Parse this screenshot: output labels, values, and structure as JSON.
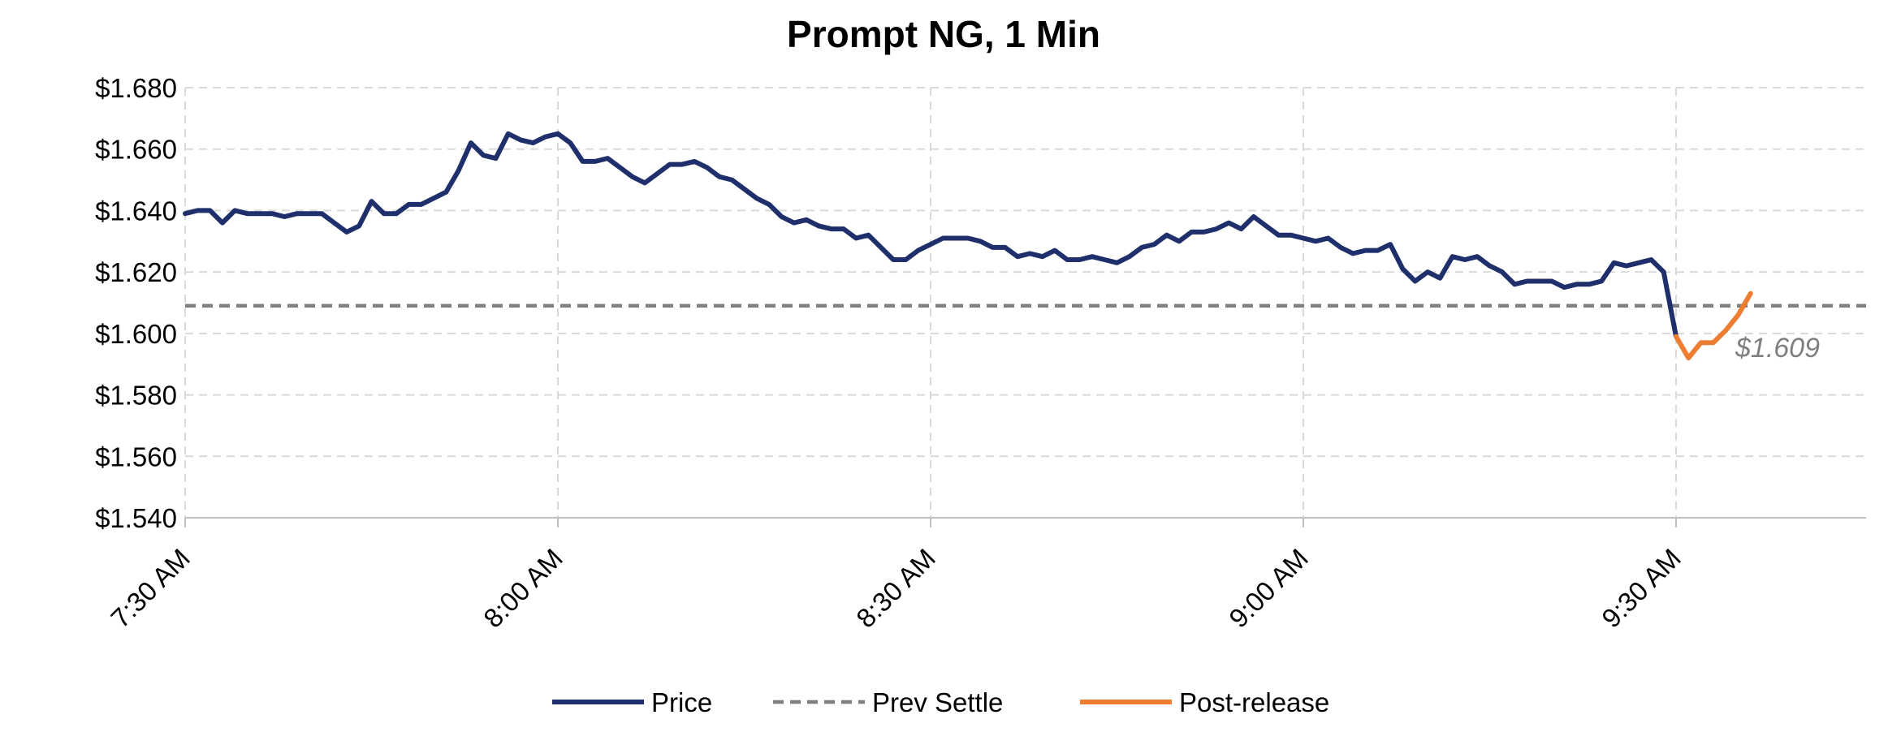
{
  "chart_data": {
    "type": "line",
    "title": "Prompt NG, 1 Min",
    "xlabel": "",
    "ylabel": "",
    "y_ticks": [
      "$1.540",
      "$1.560",
      "$1.580",
      "$1.600",
      "$1.620",
      "$1.640",
      "$1.660",
      "$1.680"
    ],
    "ylim": [
      1.54,
      1.68
    ],
    "x_ticks": [
      "7:30 AM",
      "8:00 AM",
      "8:30 AM",
      "9:00 AM",
      "9:30 AM"
    ],
    "x_range_minutes_after_0730": [
      0,
      136
    ],
    "grid": true,
    "legend_position": "bottom",
    "colors": {
      "price": "#1f2f6b",
      "prev_settle": "#7f7f7f",
      "post_release": "#ed7d31",
      "grid": "#d9d9d9"
    },
    "series": [
      {
        "name": "Price",
        "points": [
          [
            "7:30 AM",
            1.639
          ],
          [
            "7:31 AM",
            1.64
          ],
          [
            "7:32 AM",
            1.64
          ],
          [
            "7:33 AM",
            1.636
          ],
          [
            "7:34 AM",
            1.64
          ],
          [
            "7:35 AM",
            1.639
          ],
          [
            "7:36 AM",
            1.639
          ],
          [
            "7:37 AM",
            1.639
          ],
          [
            "7:38 AM",
            1.638
          ],
          [
            "7:39 AM",
            1.639
          ],
          [
            "7:40 AM",
            1.639
          ],
          [
            "7:41 AM",
            1.639
          ],
          [
            "7:42 AM",
            1.636
          ],
          [
            "7:43 AM",
            1.633
          ],
          [
            "7:44 AM",
            1.635
          ],
          [
            "7:45 AM",
            1.643
          ],
          [
            "7:46 AM",
            1.639
          ],
          [
            "7:47 AM",
            1.639
          ],
          [
            "7:48 AM",
            1.642
          ],
          [
            "7:49 AM",
            1.642
          ],
          [
            "7:50 AM",
            1.644
          ],
          [
            "7:51 AM",
            1.646
          ],
          [
            "7:52 AM",
            1.653
          ],
          [
            "7:53 AM",
            1.662
          ],
          [
            "7:54 AM",
            1.658
          ],
          [
            "7:55 AM",
            1.657
          ],
          [
            "7:56 AM",
            1.665
          ],
          [
            "7:57 AM",
            1.663
          ],
          [
            "7:58 AM",
            1.662
          ],
          [
            "7:59 AM",
            1.664
          ],
          [
            "8:00 AM",
            1.665
          ],
          [
            "8:01 AM",
            1.662
          ],
          [
            "8:02 AM",
            1.656
          ],
          [
            "8:03 AM",
            1.656
          ],
          [
            "8:04 AM",
            1.657
          ],
          [
            "8:05 AM",
            1.654
          ],
          [
            "8:06 AM",
            1.651
          ],
          [
            "8:07 AM",
            1.649
          ],
          [
            "8:08 AM",
            1.652
          ],
          [
            "8:09 AM",
            1.655
          ],
          [
            "8:10 AM",
            1.655
          ],
          [
            "8:11 AM",
            1.656
          ],
          [
            "8:12 AM",
            1.654
          ],
          [
            "8:13 AM",
            1.651
          ],
          [
            "8:14 AM",
            1.65
          ],
          [
            "8:15 AM",
            1.647
          ],
          [
            "8:16 AM",
            1.644
          ],
          [
            "8:17 AM",
            1.642
          ],
          [
            "8:18 AM",
            1.638
          ],
          [
            "8:19 AM",
            1.636
          ],
          [
            "8:20 AM",
            1.637
          ],
          [
            "8:21 AM",
            1.635
          ],
          [
            "8:22 AM",
            1.634
          ],
          [
            "8:23 AM",
            1.634
          ],
          [
            "8:24 AM",
            1.631
          ],
          [
            "8:25 AM",
            1.632
          ],
          [
            "8:26 AM",
            1.628
          ],
          [
            "8:27 AM",
            1.624
          ],
          [
            "8:28 AM",
            1.624
          ],
          [
            "8:29 AM",
            1.627
          ],
          [
            "8:30 AM",
            1.629
          ],
          [
            "8:31 AM",
            1.631
          ],
          [
            "8:32 AM",
            1.631
          ],
          [
            "8:33 AM",
            1.631
          ],
          [
            "8:34 AM",
            1.63
          ],
          [
            "8:35 AM",
            1.628
          ],
          [
            "8:36 AM",
            1.628
          ],
          [
            "8:37 AM",
            1.625
          ],
          [
            "8:38 AM",
            1.626
          ],
          [
            "8:39 AM",
            1.625
          ],
          [
            "8:40 AM",
            1.627
          ],
          [
            "8:41 AM",
            1.624
          ],
          [
            "8:42 AM",
            1.624
          ],
          [
            "8:43 AM",
            1.625
          ],
          [
            "8:44 AM",
            1.624
          ],
          [
            "8:45 AM",
            1.623
          ],
          [
            "8:46 AM",
            1.625
          ],
          [
            "8:47 AM",
            1.628
          ],
          [
            "8:48 AM",
            1.629
          ],
          [
            "8:49 AM",
            1.632
          ],
          [
            "8:50 AM",
            1.63
          ],
          [
            "8:51 AM",
            1.633
          ],
          [
            "8:52 AM",
            1.633
          ],
          [
            "8:53 AM",
            1.634
          ],
          [
            "8:54 AM",
            1.636
          ],
          [
            "8:55 AM",
            1.634
          ],
          [
            "8:56 AM",
            1.638
          ],
          [
            "8:57 AM",
            1.635
          ],
          [
            "8:58 AM",
            1.632
          ],
          [
            "8:59 AM",
            1.632
          ],
          [
            "9:00 AM",
            1.631
          ],
          [
            "9:01 AM",
            1.63
          ],
          [
            "9:02 AM",
            1.631
          ],
          [
            "9:03 AM",
            1.628
          ],
          [
            "9:04 AM",
            1.626
          ],
          [
            "9:05 AM",
            1.627
          ],
          [
            "9:06 AM",
            1.627
          ],
          [
            "9:07 AM",
            1.629
          ],
          [
            "9:08 AM",
            1.621
          ],
          [
            "9:09 AM",
            1.617
          ],
          [
            "9:10 AM",
            1.62
          ],
          [
            "9:11 AM",
            1.618
          ],
          [
            "9:12 AM",
            1.625
          ],
          [
            "9:13 AM",
            1.624
          ],
          [
            "9:14 AM",
            1.625
          ],
          [
            "9:15 AM",
            1.622
          ],
          [
            "9:16 AM",
            1.62
          ],
          [
            "9:17 AM",
            1.616
          ],
          [
            "9:18 AM",
            1.617
          ],
          [
            "9:19 AM",
            1.617
          ],
          [
            "9:20 AM",
            1.617
          ],
          [
            "9:21 AM",
            1.615
          ],
          [
            "9:22 AM",
            1.616
          ],
          [
            "9:23 AM",
            1.616
          ],
          [
            "9:24 AM",
            1.617
          ],
          [
            "9:25 AM",
            1.623
          ],
          [
            "9:26 AM",
            1.622
          ],
          [
            "9:27 AM",
            1.623
          ],
          [
            "9:28 AM",
            1.624
          ],
          [
            "9:29 AM",
            1.62
          ],
          [
            "9:30 AM",
            1.599
          ]
        ]
      },
      {
        "name": "Prev Settle",
        "value": 1.609,
        "style": "dashed"
      },
      {
        "name": "Post-release",
        "points": [
          [
            "9:30 AM",
            1.599
          ],
          [
            "9:31 AM",
            1.592
          ],
          [
            "9:32 AM",
            1.597
          ],
          [
            "9:33 AM",
            1.597
          ],
          [
            "9:34 AM",
            1.601
          ],
          [
            "9:35 AM",
            1.606
          ],
          [
            "9:36 AM",
            1.613
          ]
        ]
      }
    ],
    "annotations": [
      {
        "text": "$1.609",
        "attached_to": "Prev Settle"
      }
    ]
  }
}
